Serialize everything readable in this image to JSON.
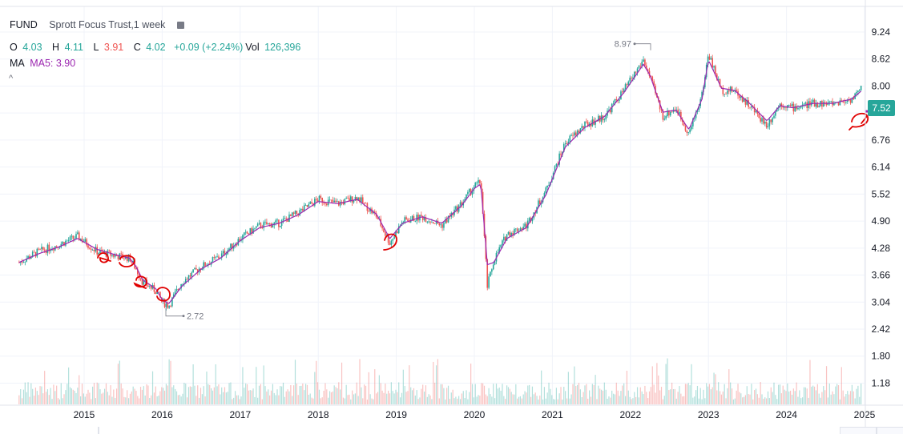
{
  "header": {
    "symbol": "FUND",
    "title": "Sprott Focus Trust,1 week",
    "ohlc": {
      "o_label": "O",
      "o": "4.03",
      "h_label": "H",
      "h": "4.11",
      "l_label": "L",
      "l": "3.91",
      "c_label": "C",
      "c": "4.02",
      "change": "+0.09 (+2.24%)",
      "vol_label": "Vol",
      "vol": "126,396"
    },
    "ma_label": "MA",
    "ma_value": "MA5: 3.90",
    "collapse_glyph": "^",
    "settings_icon": "settings-icon"
  },
  "colors": {
    "up": "#26a69a",
    "down": "#ef5350",
    "ma": "#9c27b0",
    "grid": "#f0f3fa",
    "annotation": "#e00000"
  },
  "chart_data": {
    "type": "line",
    "title": "",
    "series": [
      {
        "name": "",
        "kind": "weekly candlestick close",
        "x": [
          "2014-03",
          "2014-06",
          "2014-09",
          "2014-12",
          "2015-03",
          "2015-06",
          "2015-08",
          "2015-09",
          "2015-10",
          "2015-12",
          "2016-01",
          "2016-02",
          "2016-04",
          "2016-07",
          "2016-10",
          "2017-01",
          "2017-04",
          "2017-07",
          "2017-10",
          "2018-01",
          "2018-04",
          "2018-07",
          "2018-10",
          "2018-12",
          "2019-02",
          "2019-05",
          "2019-08",
          "2019-11",
          "2020-01",
          "2020-02",
          "2020-03",
          "2020-04",
          "2020-06",
          "2020-09",
          "2020-12",
          "2021-03",
          "2021-06",
          "2021-09",
          "2021-12",
          "2022-03",
          "2022-04",
          "2022-06",
          "2022-08",
          "2022-10",
          "2022-12",
          "2023-01",
          "2023-03",
          "2023-05",
          "2023-07",
          "2023-10",
          "2023-12",
          "2024-02",
          "2024-05",
          "2024-08",
          "2024-11",
          "2025-01",
          "2025-02"
        ],
        "values": [
          3.95,
          4.2,
          4.35,
          4.55,
          4.2,
          4.1,
          4.05,
          3.8,
          3.5,
          3.3,
          3.05,
          2.95,
          3.5,
          3.85,
          4.1,
          4.5,
          4.8,
          4.85,
          5.1,
          5.4,
          5.3,
          5.45,
          5.0,
          4.4,
          4.9,
          5.0,
          4.8,
          5.3,
          5.7,
          5.8,
          3.4,
          4.0,
          4.6,
          4.8,
          5.6,
          6.7,
          7.1,
          7.3,
          7.9,
          8.6,
          8.2,
          7.3,
          7.5,
          6.9,
          7.8,
          8.75,
          7.9,
          7.9,
          7.6,
          7.1,
          7.6,
          7.5,
          7.6,
          7.6,
          7.7,
          8.0,
          7.52
        ]
      },
      {
        "name": "MA5",
        "values": [
          3.95,
          4.15,
          4.3,
          4.5,
          4.25,
          4.12,
          4.05,
          3.85,
          3.55,
          3.35,
          3.1,
          3.0,
          3.4,
          3.8,
          4.05,
          4.45,
          4.75,
          4.85,
          5.05,
          5.35,
          5.3,
          5.4,
          5.05,
          4.5,
          4.85,
          5.0,
          4.85,
          5.25,
          5.65,
          5.75,
          3.9,
          3.95,
          4.5,
          4.75,
          5.5,
          6.6,
          7.05,
          7.3,
          7.85,
          8.5,
          8.25,
          7.4,
          7.45,
          7.0,
          7.7,
          8.6,
          7.95,
          7.9,
          7.65,
          7.2,
          7.55,
          7.5,
          7.6,
          7.6,
          7.7,
          7.95,
          7.6
        ]
      }
    ],
    "xlabel": "",
    "ylabel": "",
    "x_ticks": [
      "2015",
      "2016",
      "2017",
      "2018",
      "2019",
      "2020",
      "2021",
      "2022",
      "2023",
      "2024",
      "2025"
    ],
    "y_ticks": [
      "9.24",
      "8.62",
      "8.00",
      "7.38",
      "6.76",
      "6.14",
      "5.52",
      "4.90",
      "4.28",
      "3.66",
      "3.04",
      "2.42",
      "1.80",
      "1.18"
    ],
    "ylim": [
      1.0,
      9.6
    ],
    "log_scale": false,
    "grid": true,
    "last_price": "7.52",
    "high_marker": "8.97",
    "low_marker": "2.72",
    "volume": {
      "note_axis": "volume bars occupy lower band"
    }
  }
}
